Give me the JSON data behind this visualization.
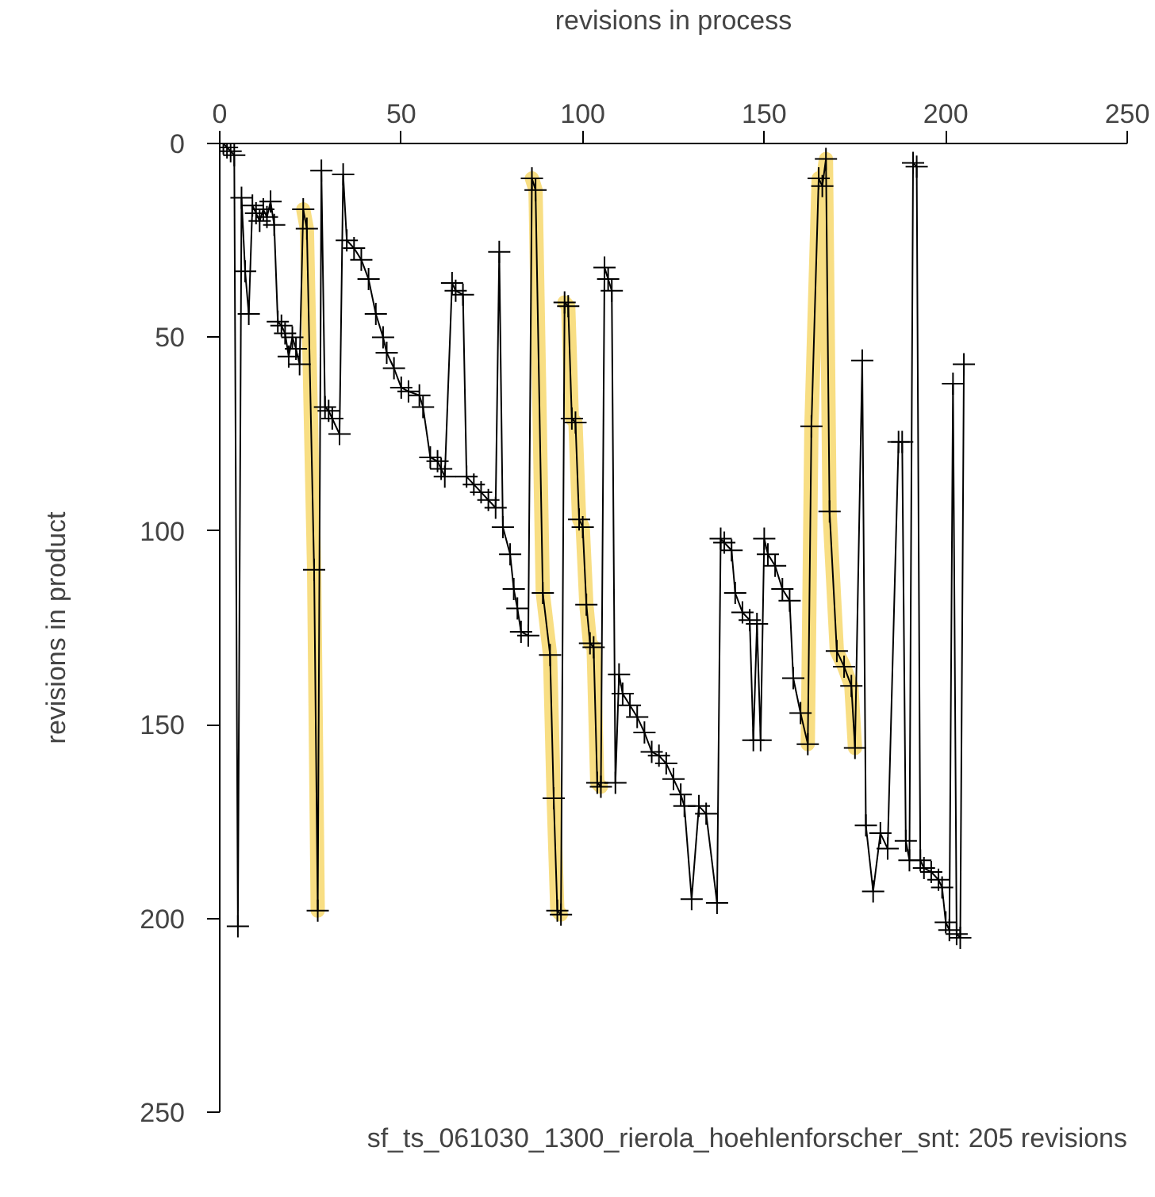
{
  "chart_data": {
    "type": "line",
    "xlabel": "revisions in process",
    "ylabel": "revisions in product",
    "annotations": [
      "sf_ts_061030_1300_rierola_hoehlenforscher_snt: 205 revisions"
    ],
    "xlim": [
      0,
      250
    ],
    "ylim": [
      250,
      0
    ],
    "xticks": [
      0,
      50,
      100,
      150,
      200,
      250
    ],
    "yticks": [
      0,
      50,
      100,
      150,
      200,
      250
    ],
    "marker": "cross",
    "line_style": "solid",
    "series": [
      {
        "color": "#f5d35a",
        "marker": "none",
        "x": [
          23,
          24,
          26,
          27
        ],
        "values": [
          17,
          22,
          110,
          198
        ]
      },
      {
        "color": "#f5d35a",
        "marker": "none",
        "x": [
          86,
          87,
          89,
          91,
          92,
          93,
          94
        ],
        "values": [
          9,
          12,
          116,
          132,
          169,
          198,
          199
        ]
      },
      {
        "color": "#f5d35a",
        "marker": "none",
        "x": [
          95,
          96,
          97,
          98,
          99,
          100,
          101,
          102,
          103,
          104,
          105
        ],
        "values": [
          41,
          42,
          71,
          72,
          97,
          99,
          119,
          129,
          130,
          165,
          166
        ]
      },
      {
        "color": "#f5d35a",
        "marker": "none",
        "x": [
          162,
          163,
          165,
          166,
          167,
          168,
          170,
          172,
          174,
          175
        ],
        "values": [
          155,
          73,
          9,
          11,
          4,
          95,
          131,
          135,
          140,
          156
        ]
      },
      {
        "color": "#000000",
        "x": [
          1,
          2,
          3,
          4,
          5,
          6,
          7,
          8,
          9,
          10,
          11,
          12,
          13,
          14,
          15,
          16,
          17,
          18,
          19,
          20,
          21,
          22,
          23,
          24,
          26,
          27,
          28,
          29,
          30,
          31,
          33,
          34,
          35,
          37,
          39,
          41,
          43,
          45,
          46,
          48,
          50,
          52,
          55,
          56,
          58,
          60,
          61,
          62,
          64,
          65,
          67,
          68,
          70,
          72,
          74,
          76,
          77,
          78,
          80,
          81,
          82,
          83,
          85,
          86,
          87,
          89,
          91,
          92,
          93,
          94,
          95,
          96,
          97,
          98,
          99,
          100,
          101,
          102,
          103,
          104,
          105,
          106,
          107,
          108,
          109,
          110,
          111,
          113,
          115,
          117,
          119,
          121,
          123,
          125,
          127,
          128,
          130,
          132,
          134,
          137,
          138,
          139,
          141,
          142,
          144,
          146,
          147,
          148,
          149,
          150,
          151,
          153,
          155,
          157,
          158,
          160,
          162,
          163,
          165,
          166,
          167,
          168,
          170,
          172,
          174,
          175,
          177,
          178,
          180,
          182,
          184,
          187,
          188,
          189,
          190,
          191,
          192,
          193,
          194,
          196,
          198,
          199,
          200,
          201,
          202,
          203,
          204,
          205
        ],
        "values": [
          0,
          1,
          2,
          3,
          202,
          14,
          33,
          44,
          16,
          18,
          20,
          17,
          19,
          15,
          21,
          46,
          47,
          49,
          55,
          50,
          53,
          57,
          17,
          22,
          110,
          198,
          7,
          68,
          69,
          71,
          75,
          8,
          25,
          27,
          30,
          35,
          44,
          50,
          54,
          58,
          63,
          64,
          65,
          68,
          81,
          82,
          84,
          86,
          36,
          38,
          39,
          86,
          88,
          90,
          92,
          94,
          28,
          99,
          106,
          115,
          120,
          126,
          127,
          9,
          12,
          116,
          132,
          169,
          198,
          199,
          41,
          42,
          71,
          72,
          97,
          99,
          119,
          129,
          130,
          165,
          166,
          32,
          35,
          38,
          165,
          137,
          142,
          145,
          148,
          152,
          157,
          158,
          160,
          164,
          168,
          171,
          195,
          171,
          173,
          196,
          102,
          103,
          105,
          116,
          121,
          123,
          154,
          124,
          154,
          102,
          106,
          109,
          115,
          118,
          138,
          147,
          155,
          73,
          9,
          11,
          4,
          95,
          131,
          135,
          140,
          156,
          56,
          176,
          193,
          178,
          182,
          77,
          77,
          180,
          185,
          5,
          6,
          185,
          187,
          188,
          190,
          192,
          201,
          203,
          62,
          204,
          205,
          57
        ]
      }
    ]
  }
}
